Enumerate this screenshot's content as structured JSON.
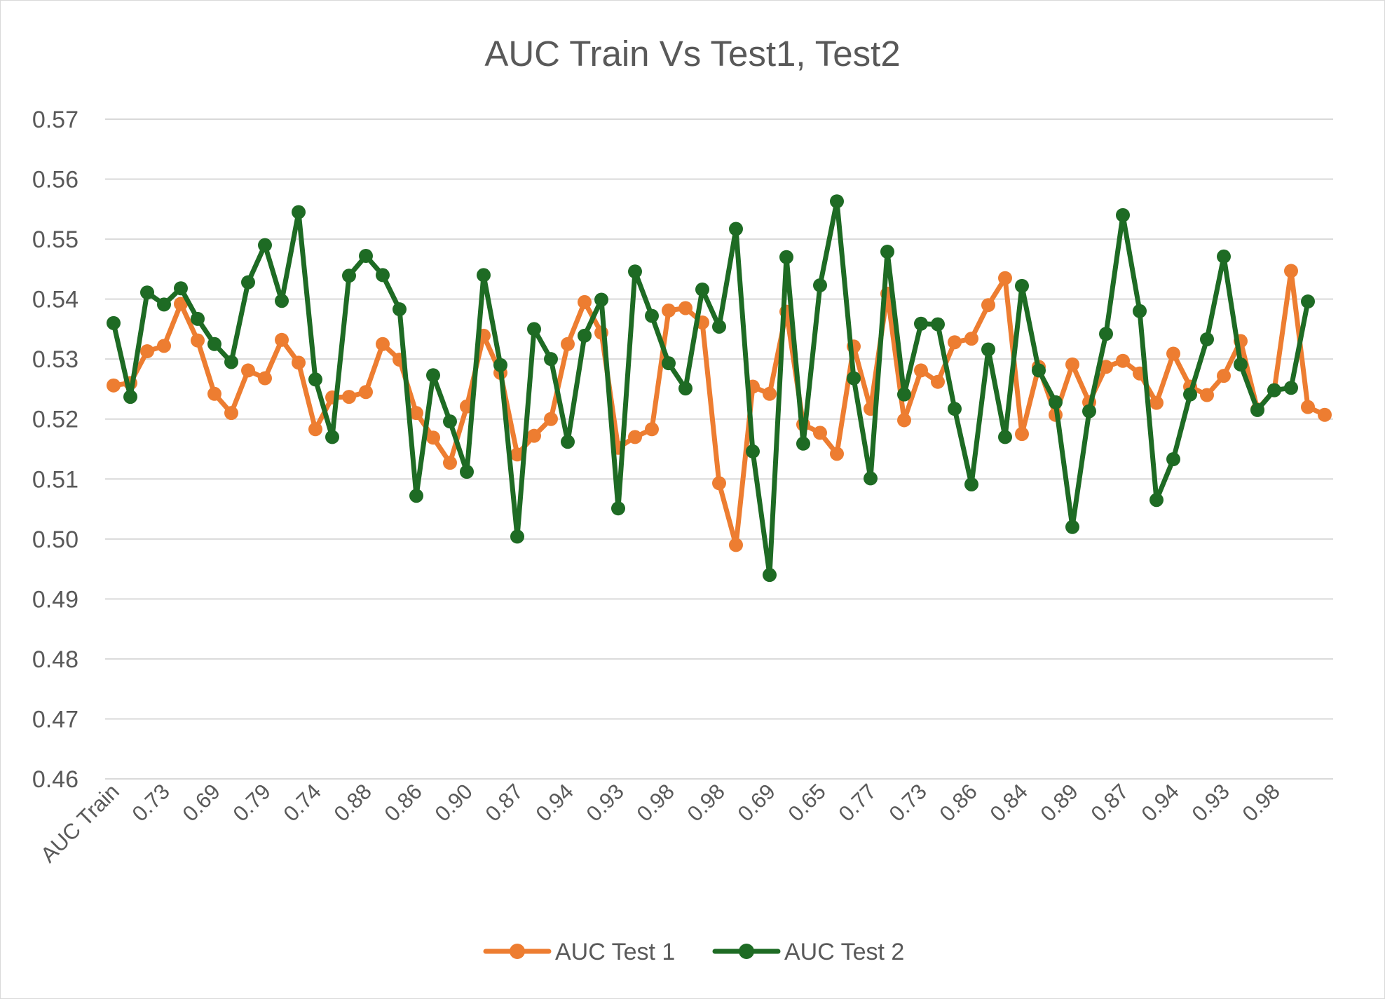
{
  "chart_data": {
    "type": "line",
    "title": "AUC Train Vs Test1, Test2",
    "xlabel": "",
    "ylabel": "",
    "ylim": [
      0.46,
      0.57
    ],
    "yticks": [
      "0.46",
      "0.47",
      "0.48",
      "0.49",
      "0.50",
      "0.51",
      "0.52",
      "0.53",
      "0.54",
      "0.55",
      "0.56",
      "0.57"
    ],
    "grid": true,
    "legend_position": "bottom",
    "x_tick_labels": [
      "AUC Train",
      "0.73",
      "0.69",
      "0.79",
      "0.74",
      "0.88",
      "0.86",
      "0.90",
      "0.87",
      "0.94",
      "0.93",
      "0.98",
      "0.98",
      "0.69",
      "0.65",
      "0.77",
      "0.73",
      "0.86",
      "0.84",
      "0.89",
      "0.87",
      "0.94",
      "0.93",
      "0.98"
    ],
    "series": [
      {
        "name": "AUC Test 1",
        "color": "#ed7d31",
        "values": [
          0.5256,
          0.526,
          0.5313,
          0.5322,
          0.5392,
          0.5331,
          0.5242,
          0.521,
          0.5281,
          0.5268,
          0.5332,
          0.5294,
          0.5183,
          0.5236,
          0.5237,
          0.5245,
          0.5325,
          0.5299,
          0.521,
          0.5169,
          0.5127,
          0.5221,
          0.5339,
          0.5277,
          0.5141,
          0.5172,
          0.52,
          0.5325,
          0.5395,
          0.5344,
          0.5152,
          0.517,
          0.5183,
          0.5381,
          0.5385,
          0.5361,
          0.5093,
          0.499,
          0.5254,
          0.5242,
          0.5379,
          0.5191,
          0.5177,
          0.5142,
          0.5321,
          0.5217,
          0.5409,
          0.5198,
          0.5281,
          0.5262,
          0.5328,
          0.5334,
          0.539,
          0.5435,
          0.5175,
          0.5287,
          0.5207,
          0.5291,
          0.5228,
          0.5287,
          0.5297,
          0.5276,
          0.5227,
          0.5309,
          0.5254,
          0.524,
          0.5272,
          0.533,
          0.5216,
          0.5248,
          0.5447,
          0.522,
          0.5207
        ]
      },
      {
        "name": "AUC Test 2",
        "color": "#1e6b24",
        "values": [
          0.536,
          0.5237,
          0.5411,
          0.5391,
          0.5418,
          0.5367,
          0.5325,
          0.5295,
          0.5428,
          0.549,
          0.5397,
          0.5545,
          0.5266,
          0.517,
          0.5439,
          0.5472,
          0.544,
          0.5383,
          0.5072,
          0.5273,
          0.5196,
          0.5112,
          0.544,
          0.529,
          0.5004,
          0.535,
          0.53,
          0.5162,
          0.5339,
          0.5399,
          0.5051,
          0.5446,
          0.5372,
          0.5293,
          0.5251,
          0.5416,
          0.5354,
          0.5517,
          0.5146,
          0.494,
          0.547,
          0.5159,
          0.5423,
          0.5563,
          0.5268,
          0.5101,
          0.5479,
          0.5241,
          0.5359,
          0.5358,
          0.5217,
          0.5091,
          0.5316,
          0.517,
          0.5422,
          0.5281,
          0.5228,
          0.502,
          0.5213,
          0.5342,
          0.554,
          0.538,
          0.5065,
          0.5133,
          0.5241,
          0.5333,
          0.5471,
          0.5291,
          0.5215,
          0.5248,
          0.5252,
          0.5396
        ]
      }
    ]
  }
}
